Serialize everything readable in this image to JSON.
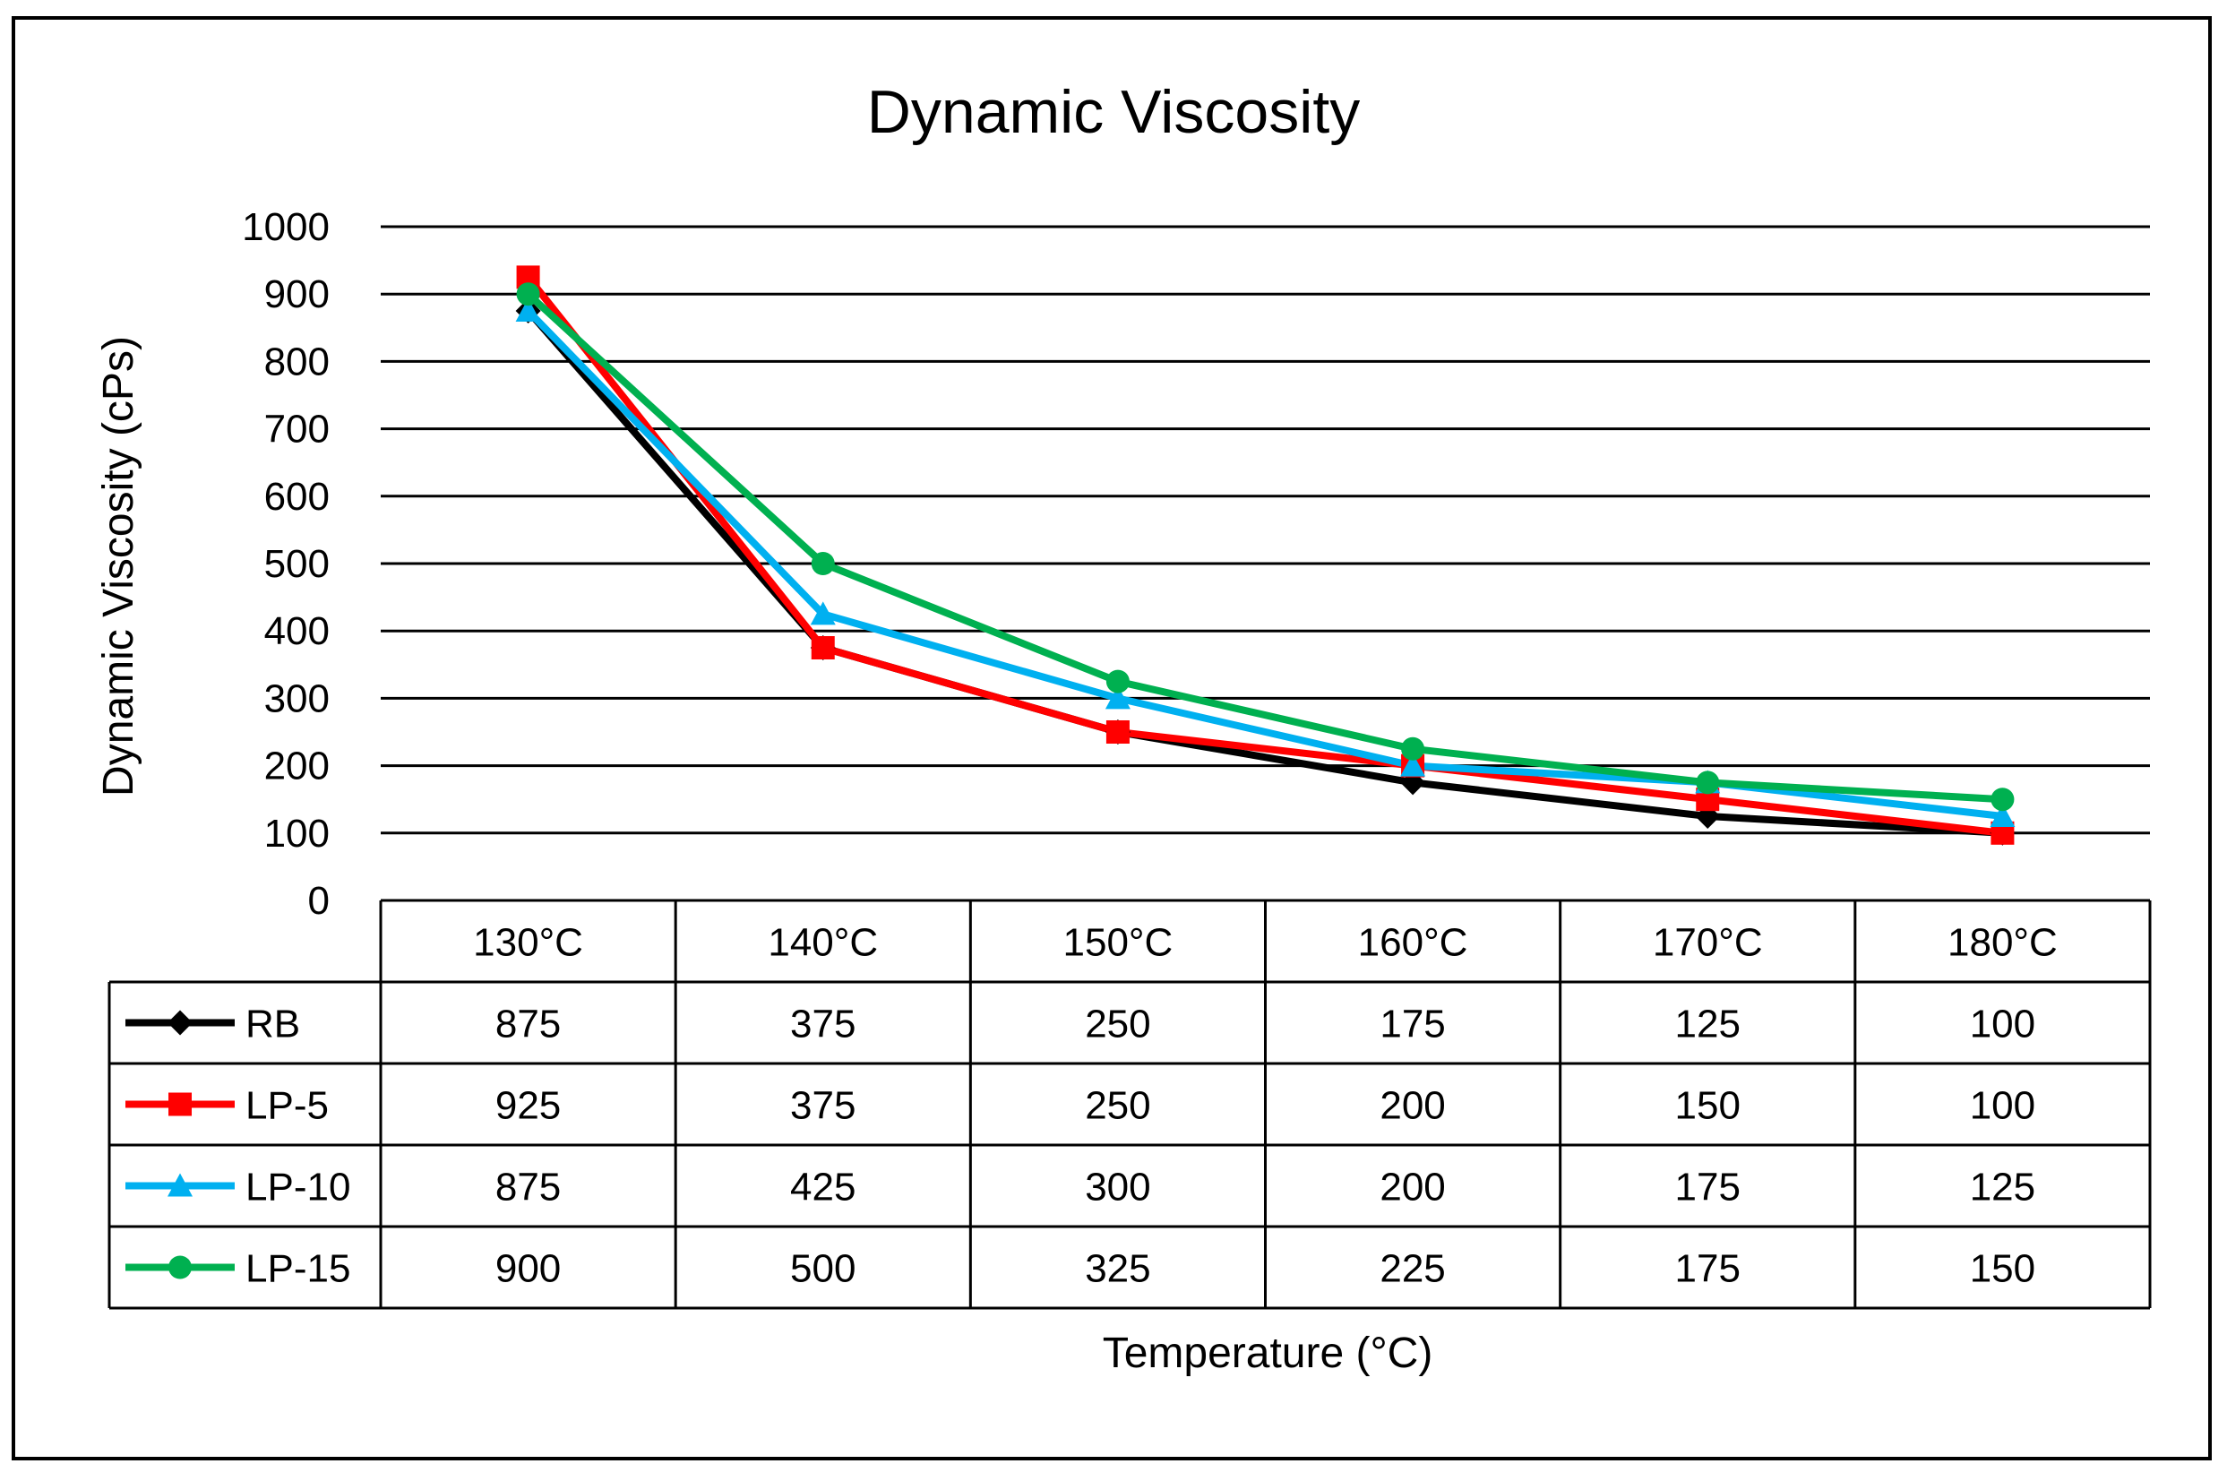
{
  "chart_data": {
    "type": "line",
    "title": "Dynamic Viscosity",
    "xlabel": "Temperature (°C)",
    "ylabel": "Dynamic Viscosity (cPs)",
    "categories": [
      "130°C",
      "140°C",
      "150°C",
      "160°C",
      "170°C",
      "180°C"
    ],
    "ylim": [
      0,
      1000
    ],
    "yticks": [
      0,
      100,
      200,
      300,
      400,
      500,
      600,
      700,
      800,
      900,
      1000
    ],
    "grid": true,
    "legend": "data-table",
    "series": [
      {
        "name": "RB",
        "color": "#000000",
        "marker": "diamond",
        "values": [
          875,
          375,
          250,
          175,
          125,
          100
        ]
      },
      {
        "name": "LP-5",
        "color": "#ff0000",
        "marker": "square",
        "values": [
          925,
          375,
          250,
          200,
          150,
          100
        ]
      },
      {
        "name": "LP-10",
        "color": "#00b0f0",
        "marker": "triangle",
        "values": [
          875,
          425,
          300,
          200,
          175,
          125
        ]
      },
      {
        "name": "LP-15",
        "color": "#00b050",
        "marker": "circle",
        "values": [
          900,
          500,
          325,
          225,
          175,
          150
        ]
      }
    ]
  }
}
